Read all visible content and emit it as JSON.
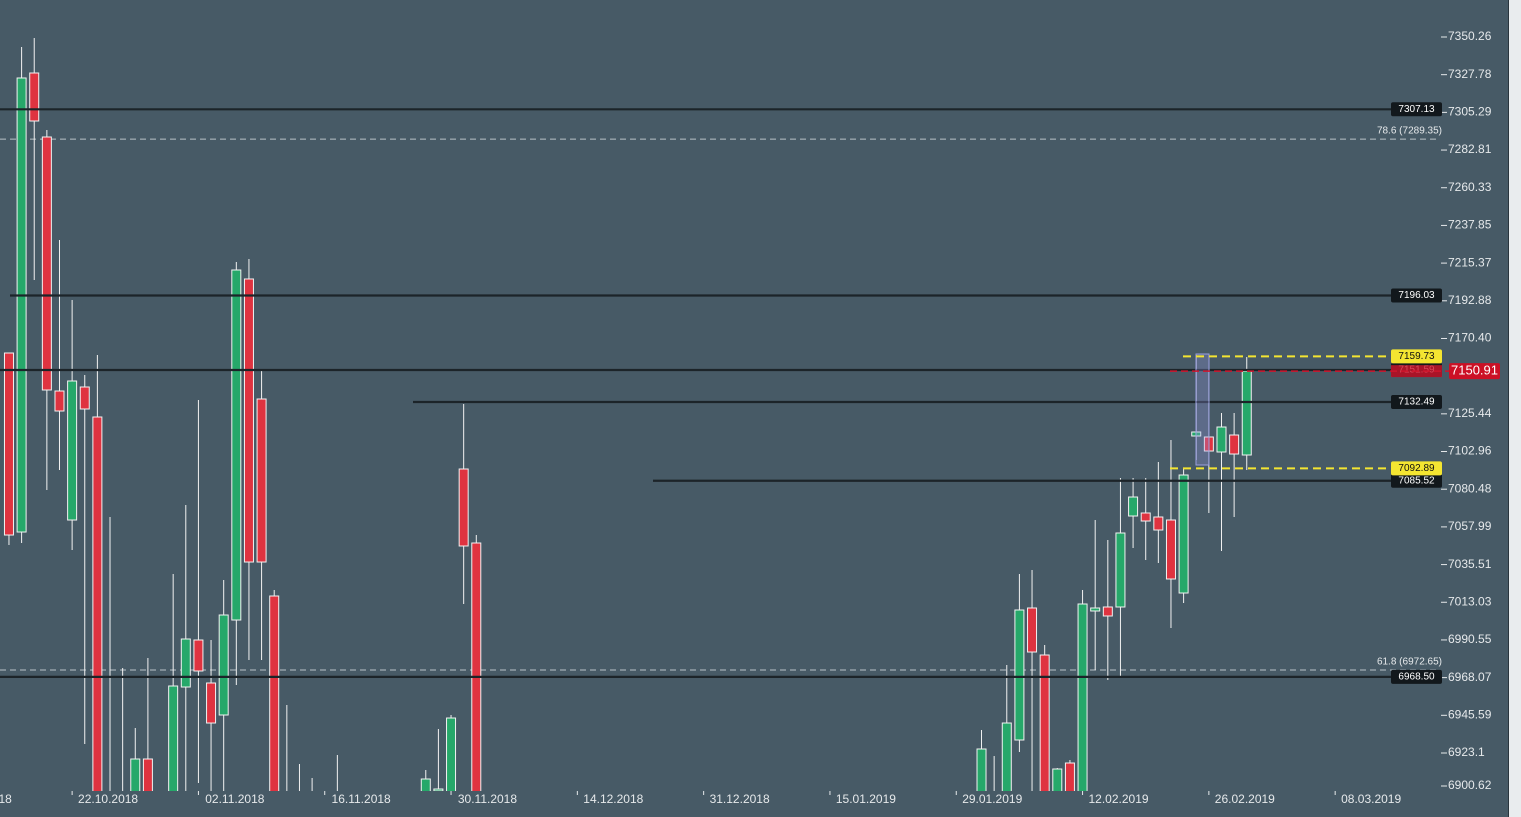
{
  "chart_data": {
    "type": "candlestick",
    "x": [
      0,
      1,
      2,
      3,
      4,
      5,
      6,
      7,
      8,
      9,
      10,
      11,
      13,
      14,
      15,
      16,
      17,
      18,
      19,
      20,
      21,
      22,
      23,
      24,
      26,
      33,
      34,
      35,
      36,
      37,
      77,
      78,
      79,
      80,
      81,
      82,
      83,
      84,
      85,
      86,
      87,
      88,
      89,
      90,
      91,
      92,
      93,
      94,
      95,
      96,
      97,
      98
    ],
    "open": [
      7161.73,
      7054.94,
      7328.78,
      7290.6,
      7139.06,
      7062.1,
      7141.45,
      7123.55,
      6895,
      6895,
      6895,
      6919.52,
      6895,
      6962.47,
      6990.51,
      6964.86,
      6945.77,
      7002.44,
      7205.89,
      7134.29,
      7016.76,
      6895,
      6895,
      6895,
      6895,
      6895,
      6900.43,
      6895,
      7092.53,
      7048.38,
      6895,
      6895,
      6895,
      6930.86,
      7009.61,
      6981.56,
      6895,
      6917.13,
      6895,
      7007.82,
      7010.2,
      7010.2,
      7064.49,
      7066.28,
      7063.89,
      7062.1,
      7018.55,
      7112.22,
      7111.62,
      7102.67,
      7112.81,
      7100.88
    ],
    "high": [
      7161.73,
      7344.29,
      7349.66,
      7294.77,
      7229.15,
      7193.35,
      7148.61,
      7160.54,
      7063.89,
      6973.81,
      6938.01,
      6979.77,
      7029.89,
      7071.05,
      7133.69,
      6990.51,
      7026.31,
      7216.02,
      7217.81,
      7151.59,
      7020.34,
      6951.74,
      6916.53,
      6908.19,
      6921.9,
      6912.96,
      6937.41,
      6945.77,
      7131.31,
      7053.15,
      6936.82,
      6921.3,
      6975.6,
      7029.89,
      7032.27,
      6987.53,
      6914.15,
      6918.92,
      7020.34,
      7062.1,
      7050.17,
      7087.16,
      7087.16,
      7087.16,
      7096.7,
      7109.83,
      7093.13,
      7160.54,
      7151.59,
      7125.94,
      7125.94,
      7159.34
    ],
    "low": [
      7047.19,
      7048.38,
      7205.29,
      7080.0,
      7091.93,
      7044.2,
      6928.47,
      6895,
      6895,
      6895,
      6895,
      6895,
      6895,
      6895,
      6905.2,
      6895,
      6895,
      6963.66,
      6978.58,
      6978.58,
      6895,
      6895,
      6895,
      6895,
      6895,
      6895,
      6895,
      6895,
      7011.99,
      6895,
      6895,
      6895,
      6895,
      6923.69,
      6895,
      6895,
      6895,
      6895,
      6895,
      6972.62,
      6966.65,
      6969.04,
      7045.4,
      7038.24,
      7036.45,
      6997.67,
      7012.59,
      7097.9,
      7066.28,
      7043.6,
      7063.89,
      7091.93
    ],
    "close": [
      7053.15,
      7325.8,
      7300.14,
      7139.66,
      7127.13,
      7145.03,
      7128.33,
      6895,
      6895,
      6895,
      6919.52,
      6895,
      6963.07,
      6991.11,
      6972.02,
      6940.99,
      7005.43,
      7211.25,
      7037.04,
      7037.04,
      6895,
      6895,
      6895,
      6895,
      6895,
      6907.59,
      6901.62,
      6943.97,
      7046.6,
      6895,
      6925.49,
      6895,
      6940.99,
      7008.41,
      6983.35,
      6895,
      6913.55,
      6895,
      7011.99,
      7009.61,
      7004.84,
      7054.35,
      7075.82,
      7061.5,
      7056.14,
      7026.91,
      7088.95,
      7114.6,
      7103.26,
      7117.58,
      7101.47,
      7150.91
    ],
    "up_color": "#26a86a",
    "down_color": "#df3340",
    "xlim": [
      -0.71,
      113.3
    ],
    "xticks": [
      {
        "value": -5,
        "label": "18"
      },
      {
        "value": 5,
        "label": "22.10.2018"
      },
      {
        "value": 15,
        "label": "02.11.2018"
      },
      {
        "value": 25,
        "label": "16.11.2018"
      },
      {
        "value": 35,
        "label": "30.11.2018"
      },
      {
        "value": 45,
        "label": "14.12.2018"
      },
      {
        "value": 55,
        "label": "31.12.2018"
      },
      {
        "value": 65,
        "label": "15.01.2019"
      },
      {
        "value": 75,
        "label": "29.01.2019"
      },
      {
        "value": 85,
        "label": "12.02.2019"
      },
      {
        "value": 95,
        "label": "26.02.2019"
      },
      {
        "value": 105,
        "label": "08.03.2019"
      }
    ],
    "ylim": [
      6900.43,
      7372.33
    ],
    "yticks": [
      7350.26,
      7327.78,
      7305.29,
      7282.81,
      7260.33,
      7237.85,
      7215.37,
      7192.88,
      {
        "value": 7170.4,
        "label": "7170.40"
      },
      7125.44,
      7102.96,
      7080.48,
      7057.99,
      7035.51,
      7013.03,
      6990.55,
      6968.07,
      6945.59,
      6923.1,
      6900.62
    ],
    "levels": [
      {
        "value": 7307.13,
        "label": "7307.13"
      },
      {
        "value": 7196.03,
        "label": "7196.03"
      },
      {
        "value": 7151.59,
        "label": "7151.59"
      },
      {
        "value": 7132.49,
        "label": "7132.49"
      },
      {
        "value": 7085.52,
        "label": "7085.52"
      },
      {
        "value": 6968.5,
        "label": "6968.50"
      }
    ],
    "range_levels": [
      {
        "value": 7159.73,
        "label": "7159.73"
      },
      {
        "value": 7092.89,
        "label": "7092.89"
      }
    ],
    "fib_levels": [
      {
        "value": 7289.35,
        "label": "78.6 (7289.35)"
      },
      {
        "value": 6972.65,
        "label": "61.8 (6972.65)"
      }
    ],
    "last_price": {
      "value": 7150.91,
      "label": "7150.91"
    }
  }
}
